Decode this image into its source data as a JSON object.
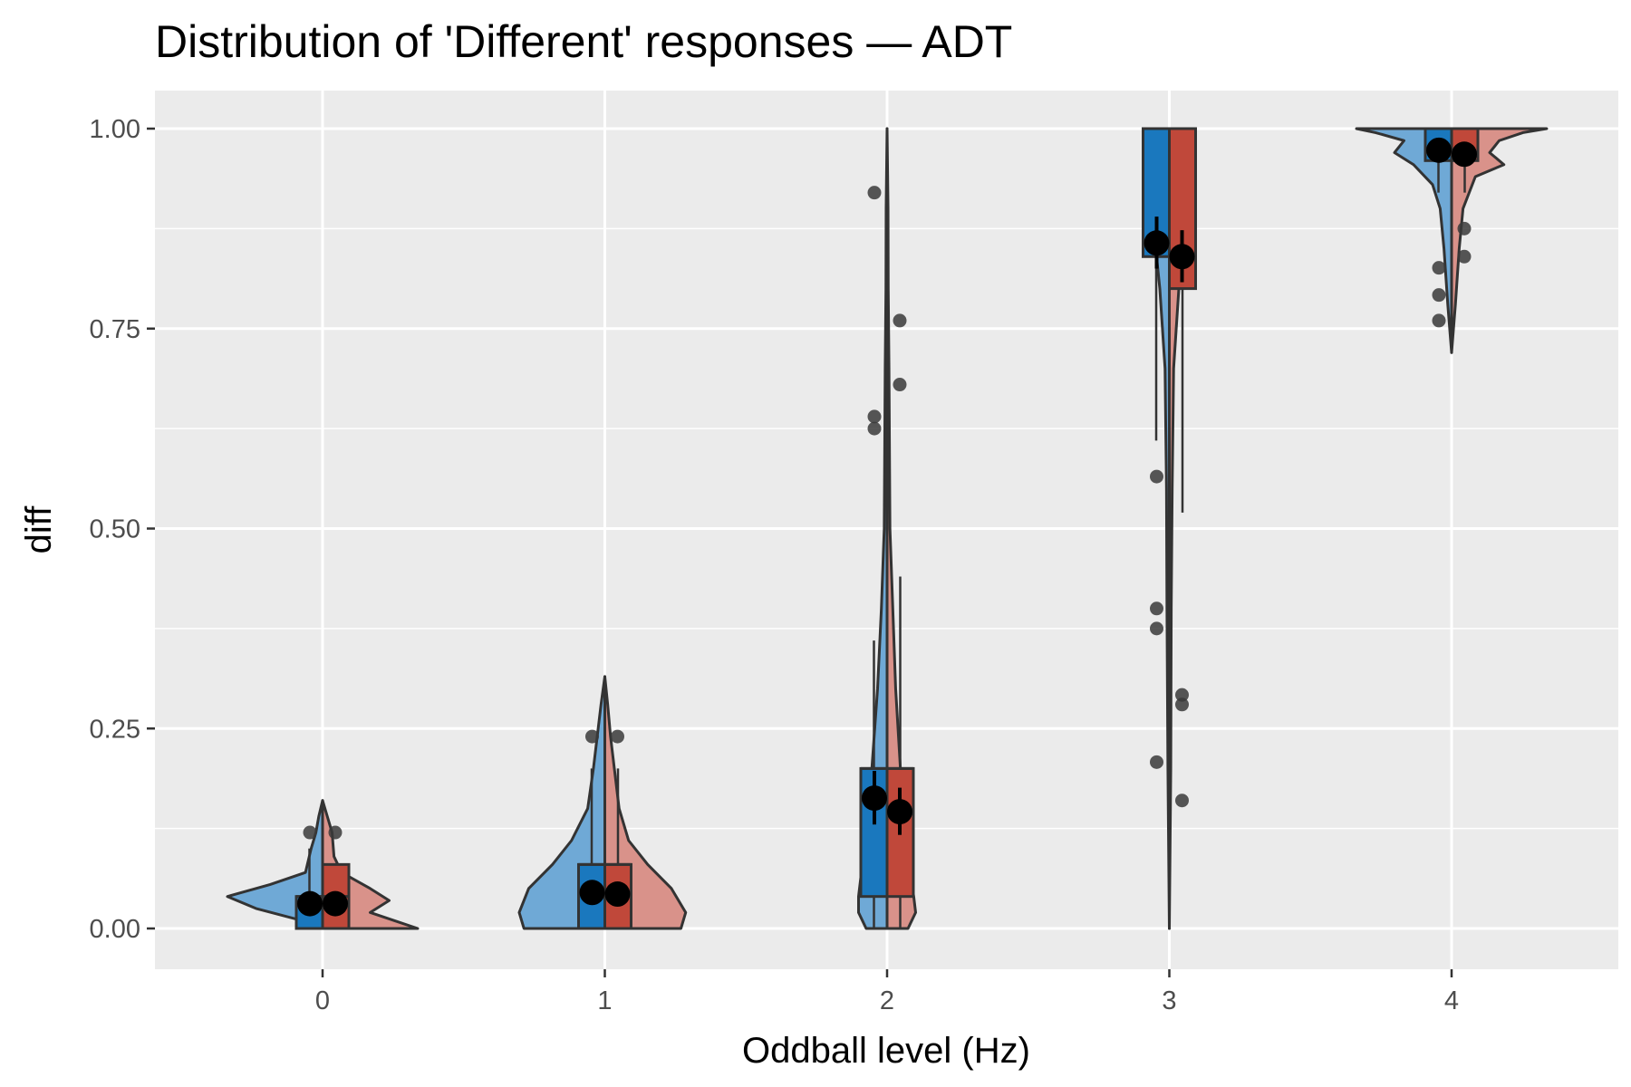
{
  "chart_data": {
    "type": "violin",
    "title": "Distribution of 'Different' responses — ADT",
    "xlabel": "Oddball level (Hz)",
    "ylabel": "diff",
    "categories": [
      "0",
      "1",
      "2",
      "3",
      "4"
    ],
    "y_ticks": [
      {
        "value": 0.0,
        "label": "0.00"
      },
      {
        "value": 0.25,
        "label": "0.25"
      },
      {
        "value": 0.5,
        "label": "0.50"
      },
      {
        "value": 0.75,
        "label": "0.75"
      },
      {
        "value": 1.0,
        "label": "1.00"
      }
    ],
    "ylim": [
      -0.05,
      1.05
    ],
    "grid": true,
    "colors": {
      "panel": "#ebebeb",
      "grid": "#ffffff",
      "blue": "#1a78be",
      "blue_violin": "#6fa9d6",
      "red": "#c0483a",
      "red_violin": "#d9928a",
      "outline": "#333333",
      "point": "#3a3a3a",
      "mean": "#000000"
    },
    "series": [
      {
        "color_key": "blue",
        "groups": [
          {
            "box": {
              "q1": 0.0,
              "median": 0.04,
              "q3": 0.04,
              "wmin": 0.0,
              "wmax": 0.1
            },
            "mean": 0.031,
            "ci": [
              0.02,
              0.042
            ],
            "outliers": [
              0.12
            ],
            "density": [
              [
                0,
                0.25
              ],
              [
                0.01,
                0.22
              ],
              [
                0.025,
                0.7
              ],
              [
                0.04,
                1.0
              ],
              [
                0.055,
                0.55
              ],
              [
                0.07,
                0.18
              ],
              [
                0.1,
                0.12
              ],
              [
                0.12,
                0.07
              ],
              [
                0.14,
                0.04
              ],
              [
                0.16,
                0.0
              ]
            ]
          },
          {
            "box": {
              "q1": 0.0,
              "median": 0.08,
              "q3": 0.08,
              "wmin": 0.0,
              "wmax": 0.2
            },
            "mean": 0.045,
            "ci": [
              0.032,
              0.058
            ],
            "outliers": [
              0.24
            ],
            "density": [
              [
                0,
                0.85
              ],
              [
                0.02,
                0.9
              ],
              [
                0.05,
                0.8
              ],
              [
                0.08,
                0.55
              ],
              [
                0.11,
                0.35
              ],
              [
                0.15,
                0.18
              ],
              [
                0.2,
                0.12
              ],
              [
                0.24,
                0.08
              ],
              [
                0.28,
                0.04
              ],
              [
                0.315,
                0.0
              ]
            ]
          },
          {
            "box": {
              "q1": 0.04,
              "median": 0.2,
              "q3": 0.2,
              "wmin": 0.0,
              "wmax": 0.36
            },
            "mean": 0.163,
            "ci": [
              0.13,
              0.197
            ],
            "outliers": [
              0.625,
              0.64,
              0.92
            ],
            "density": [
              [
                0,
                0.22
              ],
              [
                0.02,
                0.3
              ],
              [
                0.04,
                0.3
              ],
              [
                0.1,
                0.24
              ],
              [
                0.2,
                0.16
              ],
              [
                0.3,
                0.1
              ],
              [
                0.4,
                0.06
              ],
              [
                0.5,
                0.03
              ],
              [
                0.6,
                0.025
              ],
              [
                0.7,
                0.02
              ],
              [
                0.8,
                0.012
              ],
              [
                0.9,
                0.01
              ],
              [
                1.0,
                0.0
              ]
            ]
          },
          {
            "box": {
              "q1": 0.84,
              "median": 1.0,
              "q3": 1.0,
              "wmin": 0.61,
              "wmax": 1.0
            },
            "mean": 0.857,
            "ci": [
              0.825,
              0.89
            ],
            "outliers": [
              0.208,
              0.375,
              0.4,
              0.565
            ],
            "density": [
              [
                0,
                0.0
              ],
              [
                0.2,
                0.015
              ],
              [
                0.4,
                0.025
              ],
              [
                0.55,
                0.03
              ],
              [
                0.7,
                0.045
              ],
              [
                0.8,
                0.1
              ],
              [
                0.87,
                0.16
              ],
              [
                0.93,
                0.1
              ],
              [
                0.97,
                0.05
              ],
              [
                1.0,
                0.03
              ]
            ]
          },
          {
            "box": {
              "q1": 0.96,
              "median": 1.0,
              "q3": 1.0,
              "wmin": 0.92,
              "wmax": 1.0
            },
            "mean": 0.973,
            "ci": [
              0.962,
              0.984
            ],
            "outliers": [
              0.76,
              0.792,
              0.826
            ],
            "density": [
              [
                0.72,
                0.0
              ],
              [
                0.78,
                0.04
              ],
              [
                0.85,
                0.08
              ],
              [
                0.9,
                0.12
              ],
              [
                0.93,
                0.2
              ],
              [
                0.955,
                0.4
              ],
              [
                0.97,
                0.6
              ],
              [
                0.985,
                0.5
              ],
              [
                0.995,
                0.8
              ],
              [
                1.0,
                1.0
              ]
            ]
          }
        ]
      },
      {
        "color_key": "red",
        "groups": [
          {
            "box": {
              "q1": 0.0,
              "median": 0.04,
              "q3": 0.08,
              "wmin": 0.0,
              "wmax": 0.08
            },
            "mean": 0.031,
            "ci": [
              0.02,
              0.042
            ],
            "outliers": [
              0.12
            ],
            "density": [
              [
                0,
                1.0
              ],
              [
                0.01,
                0.75
              ],
              [
                0.02,
                0.5
              ],
              [
                0.035,
                0.7
              ],
              [
                0.05,
                0.5
              ],
              [
                0.07,
                0.2
              ],
              [
                0.09,
                0.12
              ],
              [
                0.12,
                0.1
              ],
              [
                0.14,
                0.05
              ],
              [
                0.16,
                0.0
              ]
            ]
          },
          {
            "box": {
              "q1": 0.0,
              "median": 0.08,
              "q3": 0.08,
              "wmin": 0.0,
              "wmax": 0.2
            },
            "mean": 0.043,
            "ci": [
              0.03,
              0.056
            ],
            "outliers": [
              0.24
            ],
            "density": [
              [
                0,
                0.8
              ],
              [
                0.02,
                0.85
              ],
              [
                0.05,
                0.7
              ],
              [
                0.08,
                0.45
              ],
              [
                0.11,
                0.25
              ],
              [
                0.15,
                0.15
              ],
              [
                0.2,
                0.1
              ],
              [
                0.24,
                0.06
              ],
              [
                0.28,
                0.03
              ],
              [
                0.315,
                0.0
              ]
            ]
          },
          {
            "box": {
              "q1": 0.04,
              "median": 0.2,
              "q3": 0.2,
              "wmin": 0.0,
              "wmax": 0.44
            },
            "mean": 0.146,
            "ci": [
              0.117,
              0.176
            ],
            "outliers": [
              0.68,
              0.76
            ],
            "density": [
              [
                0,
                0.22
              ],
              [
                0.02,
                0.3
              ],
              [
                0.04,
                0.28
              ],
              [
                0.1,
                0.2
              ],
              [
                0.2,
                0.14
              ],
              [
                0.3,
                0.09
              ],
              [
                0.4,
                0.06
              ],
              [
                0.5,
                0.03
              ],
              [
                0.6,
                0.025
              ],
              [
                0.7,
                0.02
              ],
              [
                0.8,
                0.012
              ],
              [
                0.9,
                0.01
              ],
              [
                1.0,
                0.0
              ]
            ]
          },
          {
            "box": {
              "q1": 0.8,
              "median": 1.0,
              "q3": 1.0,
              "wmin": 0.52,
              "wmax": 1.0
            },
            "mean": 0.84,
            "ci": [
              0.808,
              0.873
            ],
            "outliers": [
              0.16,
              0.28,
              0.292
            ],
            "density": [
              [
                0,
                0.0
              ],
              [
                0.2,
                0.015
              ],
              [
                0.4,
                0.02
              ],
              [
                0.55,
                0.03
              ],
              [
                0.7,
                0.045
              ],
              [
                0.8,
                0.1
              ],
              [
                0.86,
                0.16
              ],
              [
                0.93,
                0.1
              ],
              [
                0.97,
                0.05
              ],
              [
                1.0,
                0.03
              ]
            ]
          },
          {
            "box": {
              "q1": 0.96,
              "median": 1.0,
              "q3": 1.0,
              "wmin": 0.92,
              "wmax": 1.0
            },
            "mean": 0.968,
            "ci": [
              0.957,
              0.979
            ],
            "outliers": [
              0.84,
              0.875
            ],
            "density": [
              [
                0.72,
                0.0
              ],
              [
                0.78,
                0.04
              ],
              [
                0.85,
                0.08
              ],
              [
                0.9,
                0.12
              ],
              [
                0.94,
                0.25
              ],
              [
                0.955,
                0.55
              ],
              [
                0.97,
                0.4
              ],
              [
                0.985,
                0.5
              ],
              [
                0.995,
                0.75
              ],
              [
                1.0,
                1.0
              ]
            ]
          }
        ]
      }
    ]
  }
}
